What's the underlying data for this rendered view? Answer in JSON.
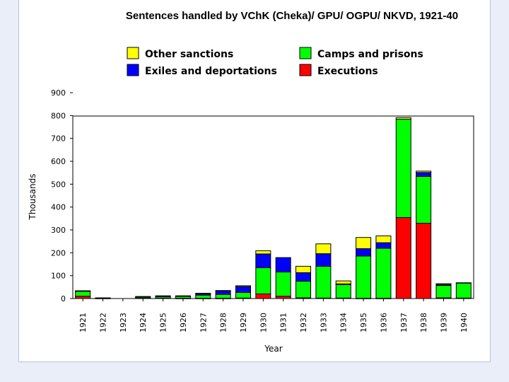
{
  "chart_data": {
    "type": "bar",
    "stacked": true,
    "title": "Sentences handled by VChK (Cheka)/ GPU/ OGPU/ NKVD, 1921-40",
    "xlabel": "Year",
    "ylabel": "Thousands",
    "ylim": [
      0,
      900
    ],
    "yticks": [
      0,
      100,
      200,
      300,
      400,
      500,
      600,
      700,
      800,
      900
    ],
    "grid": false,
    "legend_position": "top",
    "categories": [
      "1921",
      "1922",
      "1923",
      "1924",
      "1925",
      "1926",
      "1927",
      "1928",
      "1929",
      "1930",
      "1931",
      "1932",
      "1933",
      "1934",
      "1935",
      "1936",
      "1937",
      "1938",
      "1939",
      "1940"
    ],
    "series": [
      {
        "name": "Executions",
        "color": "#ff0000",
        "values": [
          10,
          1,
          0,
          2,
          2,
          1,
          1,
          1,
          2,
          20,
          10,
          3,
          2,
          2,
          1,
          1,
          354,
          329,
          3,
          2
        ]
      },
      {
        "name": "Camps and prisons",
        "color": "#00ff00",
        "values": [
          22,
          1,
          0,
          4,
          6,
          8,
          14,
          17,
          25,
          115,
          106,
          73,
          139,
          59,
          185,
          219,
          430,
          205,
          54,
          66
        ]
      },
      {
        "name": "Exiles and deportations",
        "color": "#0000ff",
        "values": [
          1,
          1,
          0,
          3,
          4,
          3,
          7,
          16,
          25,
          60,
          63,
          37,
          55,
          3,
          32,
          24,
          0,
          17,
          4,
          0
        ]
      },
      {
        "name": "Other sanctions",
        "color": "#ffff00",
        "values": [
          1,
          0,
          0,
          0,
          0,
          0,
          1,
          1,
          4,
          14,
          0,
          28,
          43,
          13,
          49,
          30,
          7,
          6,
          4,
          1
        ]
      }
    ]
  }
}
